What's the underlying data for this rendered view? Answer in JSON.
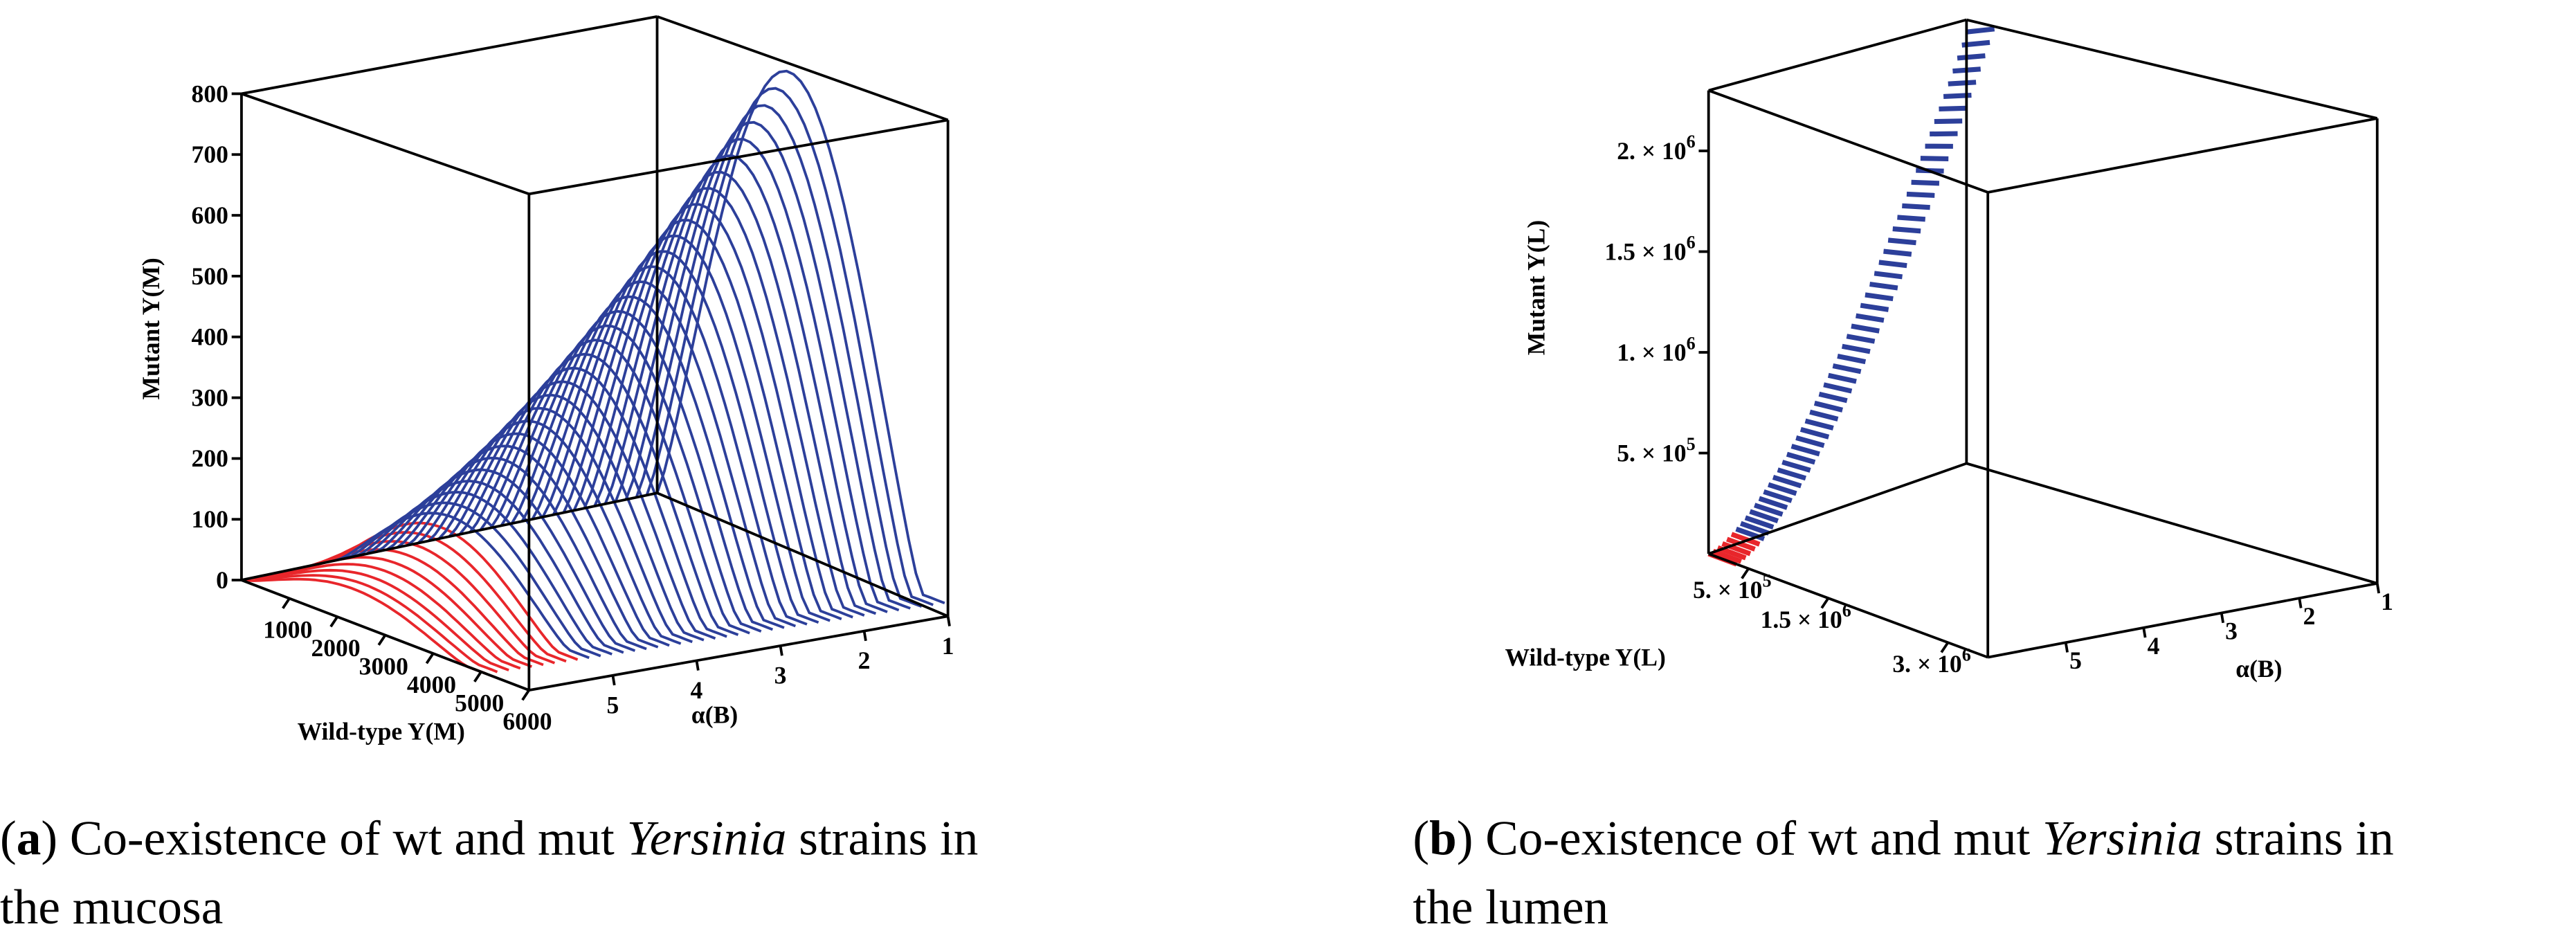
{
  "panels": [
    {
      "z_label": "Mutant Y(M)",
      "w_label": "Wild-type Y(M)",
      "a_label": "α(B)",
      "zlim": [
        0,
        800
      ],
      "zticks": [
        0,
        100,
        200,
        300,
        400,
        500,
        600,
        700,
        800
      ],
      "wlim": [
        0,
        6000
      ],
      "wticks": [
        1000,
        2000,
        3000,
        4000,
        5000,
        6000
      ],
      "alim": [
        6,
        1
      ],
      "aticks": [
        5,
        4,
        3,
        2,
        1
      ],
      "caption": {
        "line1": [
          {
            "text": "(",
            "style": "normal"
          },
          {
            "text": "a",
            "style": "bold"
          },
          {
            "text": ") Co-existence of wt and mut ",
            "style": "normal"
          },
          {
            "text": "Yersinia",
            "style": "italic"
          },
          {
            "text": " strains in",
            "style": "normal"
          }
        ],
        "line2": "the mucosa"
      }
    },
    {
      "z_label": "Mutant Y(L)",
      "w_label": "Wild-type Y(L)",
      "a_label": "α(B)",
      "zlim": [
        0,
        2300000
      ],
      "zticks": [
        {
          "value": 500000,
          "base": "5. × 10",
          "exp": "5"
        },
        {
          "value": 1000000,
          "base": "1. × 10",
          "exp": "6"
        },
        {
          "value": 1500000,
          "base": "1.5 × 10",
          "exp": "6"
        },
        {
          "value": 2000000,
          "base": "2. × 10",
          "exp": "6"
        }
      ],
      "wlim": [
        0,
        3500000
      ],
      "wticks": [
        {
          "value": 500000,
          "base": "5. × 10",
          "exp": "5"
        },
        {
          "value": 1500000,
          "base": "1.5 × 10",
          "exp": "6"
        },
        {
          "value": 3000000,
          "base": "3. × 10",
          "exp": "6"
        }
      ],
      "alim": [
        6,
        1
      ],
      "aticks": [
        5,
        4,
        3,
        2,
        1
      ],
      "caption": {
        "line1": [
          {
            "text": "(",
            "style": "normal"
          },
          {
            "text": "b",
            "style": "bold"
          },
          {
            "text": ") Co-existence of wt and mut ",
            "style": "normal"
          },
          {
            "text": "Yersinia",
            "style": "italic"
          },
          {
            "text": " strains in",
            "style": "normal"
          }
        ],
        "line2": "the lumen"
      }
    }
  ]
}
